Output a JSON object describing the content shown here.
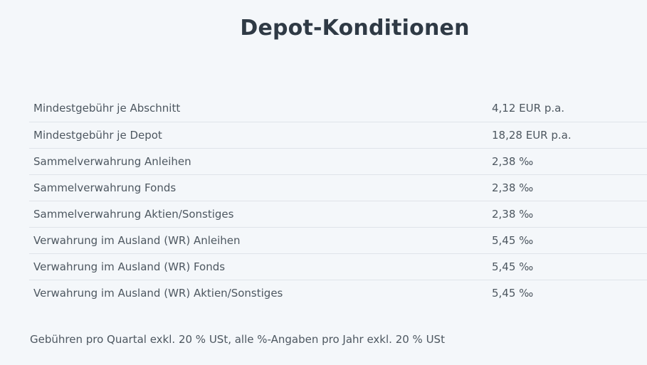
{
  "page": {
    "title": "Depot-Konditionen"
  },
  "conditions": {
    "rows": [
      {
        "label": "Mindestgebühr je Abschnitt",
        "value": "4,12 EUR p.a."
      },
      {
        "label": "Mindestgebühr je Depot",
        "value": "18,28 EUR p.a."
      },
      {
        "label": "Sammelverwahrung Anleihen",
        "value": "2,38 ‰"
      },
      {
        "label": "Sammelverwahrung Fonds",
        "value": "2,38 ‰"
      },
      {
        "label": "Sammelverwahrung Aktien/Sonstiges",
        "value": "2,38 ‰"
      },
      {
        "label": "Verwahrung im Ausland (WR) Anleihen",
        "value": "5,45 ‰"
      },
      {
        "label": "Verwahrung im Ausland (WR) Fonds",
        "value": "5,45 ‰"
      },
      {
        "label": "Verwahrung im Ausland (WR) Aktien/Sonstiges",
        "value": "5,45 ‰"
      }
    ]
  },
  "footnote": "Gebühren pro Quartal exkl. 20 % USt, alle %-Angaben pro Jahr exkl. 20 % USt",
  "colors": {
    "background": "#f4f7fa",
    "title": "#2f3a45",
    "text": "#4d5760",
    "divider": "#dfe4e9"
  }
}
